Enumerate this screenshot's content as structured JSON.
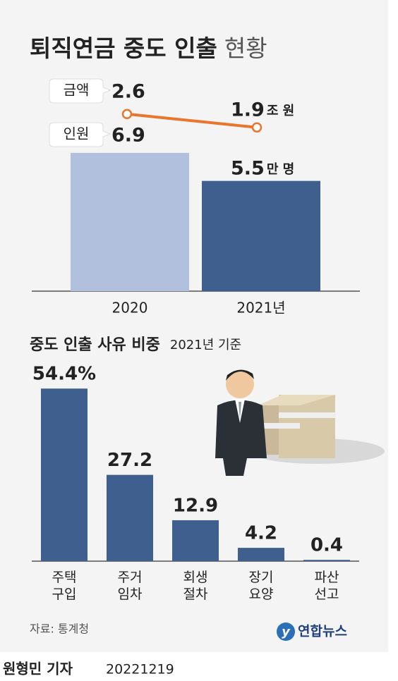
{
  "chart_data": [
    {
      "type": "combo",
      "title": "퇴직연금 중도 인출",
      "title_suffix": "현황",
      "categories": [
        "2020",
        "2021년"
      ],
      "series": [
        {
          "name": "인원",
          "type": "bar",
          "colors": [
            "#b1c0dc",
            "#3f5f8f"
          ],
          "values": [
            6.9,
            5.5
          ],
          "unit": "만 명"
        },
        {
          "name": "금액",
          "type": "line",
          "axis": "y2",
          "color": "#e8762d",
          "values": [
            2.6,
            1.9
          ],
          "unit": "조 원"
        }
      ],
      "ylim": [
        0,
        7
      ],
      "y2lim": [
        1,
        3
      ]
    },
    {
      "type": "bar",
      "title": "중도 인출 사유 비중",
      "subtitle": "2021년 기준",
      "categories": [
        "주택 구입",
        "주거 임차",
        "회생 절차",
        "장기 요양",
        "파산 선고"
      ],
      "values": [
        54.4,
        27.2,
        12.9,
        4.2,
        0.4
      ],
      "value_labels": [
        "54.4%",
        "27.2",
        "12.9",
        "4.2",
        "0.4"
      ],
      "color": "#3f5f8f",
      "ylim": [
        0,
        55
      ]
    }
  ],
  "source": "자료: 통계청",
  "logo": "연합뉴스",
  "credit": {
    "author": "원형민 기자",
    "date": "20221219"
  }
}
